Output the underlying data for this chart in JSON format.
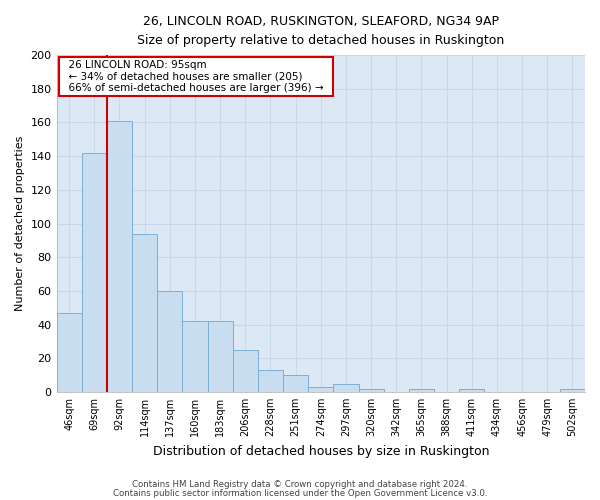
{
  "title": "26, LINCOLN ROAD, RUSKINGTON, SLEAFORD, NG34 9AP",
  "subtitle": "Size of property relative to detached houses in Ruskington",
  "xlabel": "Distribution of detached houses by size in Ruskington",
  "ylabel": "Number of detached properties",
  "bar_labels": [
    "46sqm",
    "69sqm",
    "92sqm",
    "114sqm",
    "137sqm",
    "160sqm",
    "183sqm",
    "206sqm",
    "228sqm",
    "251sqm",
    "274sqm",
    "297sqm",
    "320sqm",
    "342sqm",
    "365sqm",
    "388sqm",
    "411sqm",
    "434sqm",
    "456sqm",
    "479sqm",
    "502sqm"
  ],
  "bar_values": [
    47,
    142,
    161,
    94,
    60,
    42,
    42,
    25,
    13,
    10,
    3,
    5,
    2,
    0,
    2,
    0,
    2,
    0,
    0,
    0,
    2
  ],
  "bar_color": "#c9ddf0",
  "bar_edge_color": "#7aafd4",
  "red_line_x": 1.5,
  "annotation_title": "26 LINCOLN ROAD: 95sqm",
  "annotation_line1": "← 34% of detached houses are smaller (205)",
  "annotation_line2": "66% of semi-detached houses are larger (396) →",
  "annotation_box_color": "#ffffff",
  "annotation_box_edge": "#cc0000",
  "red_line_color": "#cc0000",
  "ylim": [
    0,
    200
  ],
  "yticks": [
    0,
    20,
    40,
    60,
    80,
    100,
    120,
    140,
    160,
    180,
    200
  ],
  "grid_color": "#c8d8ea",
  "background_color": "#ffffff",
  "plot_bg_color": "#dde8f5",
  "footer1": "Contains HM Land Registry data © Crown copyright and database right 2024.",
  "footer2": "Contains public sector information licensed under the Open Government Licence v3.0."
}
